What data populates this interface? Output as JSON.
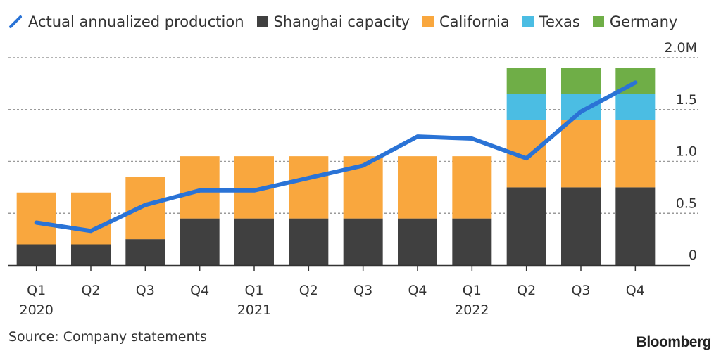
{
  "chart_data": {
    "type": "bar",
    "stacked": true,
    "title": "",
    "xlabel": "",
    "ylabel": "",
    "ylim": [
      0,
      2.0
    ],
    "y_unit_suffix": "M",
    "y_ticks": [
      {
        "value": 0,
        "label": "0"
      },
      {
        "value": 0.5,
        "label": "0.5"
      },
      {
        "value": 1.0,
        "label": "1.0"
      },
      {
        "value": 1.5,
        "label": "1.5"
      },
      {
        "value": 2.0,
        "label": "2.0M"
      }
    ],
    "grid": true,
    "y_axis_side": "right",
    "legend_position": "top-left",
    "categories": [
      "Q1 2020",
      "Q2 2020",
      "Q3 2020",
      "Q4 2020",
      "Q1 2021",
      "Q2 2021",
      "Q3 2021",
      "Q4 2021",
      "Q1 2022",
      "Q2 2022",
      "Q3 2022",
      "Q4 2022"
    ],
    "x_tick_labels": [
      {
        "quarter": "Q1",
        "year": "2020"
      },
      {
        "quarter": "Q2",
        "year": ""
      },
      {
        "quarter": "Q3",
        "year": ""
      },
      {
        "quarter": "Q4",
        "year": ""
      },
      {
        "quarter": "Q1",
        "year": "2021"
      },
      {
        "quarter": "Q2",
        "year": ""
      },
      {
        "quarter": "Q3",
        "year": ""
      },
      {
        "quarter": "Q4",
        "year": ""
      },
      {
        "quarter": "Q1",
        "year": "2022"
      },
      {
        "quarter": "Q2",
        "year": ""
      },
      {
        "quarter": "Q3",
        "year": ""
      },
      {
        "quarter": "Q4",
        "year": ""
      }
    ],
    "series": [
      {
        "name": "Shanghai capacity",
        "kind": "bar",
        "color": "#404040",
        "values": [
          0.2,
          0.2,
          0.25,
          0.45,
          0.45,
          0.45,
          0.45,
          0.45,
          0.45,
          0.75,
          0.75,
          0.75
        ]
      },
      {
        "name": "California",
        "kind": "bar",
        "color": "#F9A73E",
        "values": [
          0.5,
          0.5,
          0.6,
          0.6,
          0.6,
          0.6,
          0.6,
          0.6,
          0.6,
          0.65,
          0.65,
          0.65
        ]
      },
      {
        "name": "Texas",
        "kind": "bar",
        "color": "#4BBDE3",
        "values": [
          0,
          0,
          0,
          0,
          0,
          0,
          0,
          0,
          0,
          0.25,
          0.25,
          0.25
        ]
      },
      {
        "name": "Germany",
        "kind": "bar",
        "color": "#6FAE47",
        "values": [
          0,
          0,
          0,
          0,
          0,
          0,
          0,
          0,
          0,
          0.25,
          0.25,
          0.25
        ]
      },
      {
        "name": "Actual annualized production",
        "kind": "line",
        "color": "#2A73D6",
        "values": [
          0.41,
          0.33,
          0.58,
          0.72,
          0.72,
          0.84,
          0.96,
          1.24,
          1.22,
          1.03,
          1.48,
          1.76
        ]
      }
    ]
  },
  "legend": [
    {
      "label": "Actual annualized production",
      "type": "line",
      "color": "#2A73D6"
    },
    {
      "label": "Shanghai capacity",
      "type": "swatch",
      "color": "#404040"
    },
    {
      "label": "California",
      "type": "swatch",
      "color": "#F9A73E"
    },
    {
      "label": "Texas",
      "type": "swatch",
      "color": "#4BBDE3"
    },
    {
      "label": "Germany",
      "type": "swatch",
      "color": "#6FAE47"
    }
  ],
  "footer": {
    "source": "Source: Company statements",
    "brand": "Bloomberg"
  }
}
